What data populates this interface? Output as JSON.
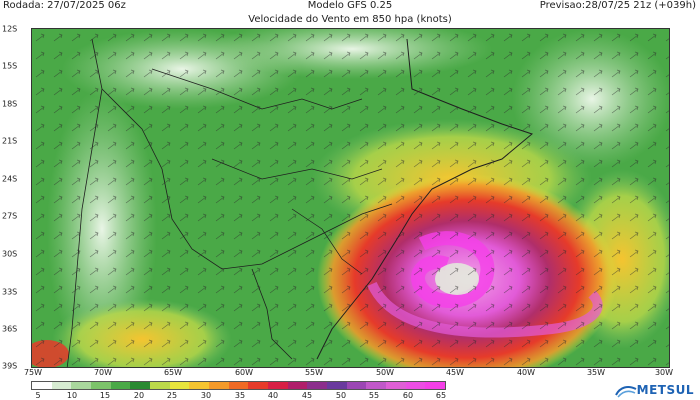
{
  "header": {
    "run_label": "Rodada: 27/07/2025 06z",
    "model_label": "Modelo GFS 0.25",
    "field_label": "Velocidade do Vento em 850 hpa (knots)",
    "forecast_label": "Previsao:28/07/25 21z (+039h)"
  },
  "map": {
    "lat_labels": [
      "12S",
      "15S",
      "18S",
      "21S",
      "24S",
      "27S",
      "30S",
      "33S",
      "36S",
      "39S"
    ],
    "lon_labels": [
      "75W",
      "70W",
      "65W",
      "60W",
      "55W",
      "50W",
      "45W",
      "40W",
      "35W",
      "30W"
    ],
    "wind_color_scale_knots": [
      "5",
      "10",
      "15",
      "20",
      "25",
      "30",
      "35",
      "40",
      "45",
      "50",
      "55",
      "60",
      "65"
    ],
    "colorbar_colors": [
      "#ffffff",
      "#d7ecd2",
      "#a9d79d",
      "#7cc36a",
      "#4aa947",
      "#2a8a32",
      "#bcd94a",
      "#e7e43c",
      "#f5c430",
      "#f49a2a",
      "#ef6a25",
      "#e63b2a",
      "#d81f45",
      "#b01e6a",
      "#8c2e8c",
      "#6a3a9e",
      "#9b46b4",
      "#c058c9",
      "#df5fd6",
      "#ec4ee4",
      "#f53fe8"
    ]
  },
  "logo": {
    "text": "METSUL"
  }
}
